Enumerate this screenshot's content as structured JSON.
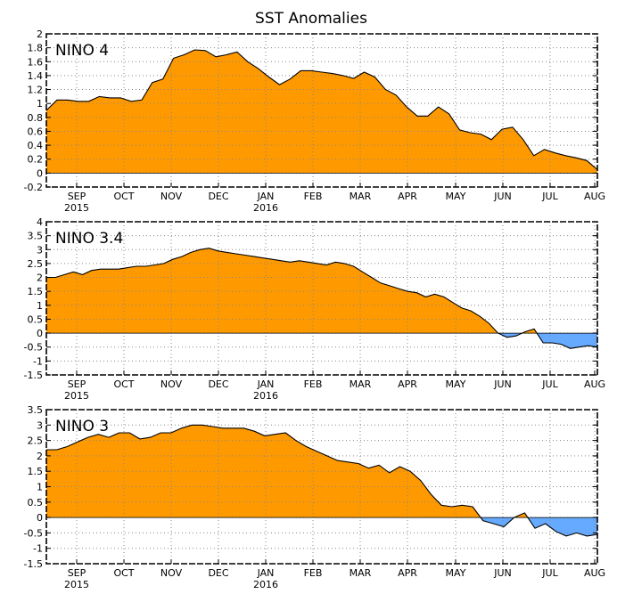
{
  "title": "SST Anomalies",
  "chart_data": [
    {
      "type": "area",
      "name": "NINO 4",
      "x_labels": [
        "SEP",
        "OCT",
        "NOV",
        "DEC",
        "JAN",
        "FEB",
        "MAR",
        "APR",
        "MAY",
        "JUN",
        "JUL",
        "AUG"
      ],
      "year_labels": [
        "2015",
        "2016"
      ],
      "ylim": [
        -0.2,
        2
      ],
      "yticks": [
        -0.2,
        0,
        0.2,
        0.4,
        0.6,
        0.8,
        1,
        1.2,
        1.4,
        1.6,
        1.8,
        2
      ],
      "ytick_labels": [
        "-0.2",
        "0",
        "0.2",
        "0.4",
        "0.6",
        "0.8",
        "1",
        "1.2",
        "1.4",
        "1.6",
        "1.8",
        "2"
      ],
      "values": [
        0.9,
        1.05,
        1.05,
        1.03,
        1.03,
        1.1,
        1.08,
        1.08,
        1.03,
        1.05,
        1.3,
        1.35,
        1.65,
        1.7,
        1.77,
        1.76,
        1.67,
        1.7,
        1.74,
        1.6,
        1.5,
        1.38,
        1.27,
        1.35,
        1.47,
        1.47,
        1.45,
        1.43,
        1.4,
        1.36,
        1.45,
        1.38,
        1.2,
        1.12,
        0.95,
        0.82,
        0.82,
        0.95,
        0.85,
        0.62,
        0.58,
        0.56,
        0.48,
        0.63,
        0.66,
        0.48,
        0.25,
        0.34,
        0.29,
        0.25,
        0.22,
        0.18,
        0.05
      ],
      "colors": {
        "positive": "#ff9900",
        "negative": "#66aaff"
      }
    },
    {
      "type": "area",
      "name": "NINO 3.4",
      "x_labels": [
        "SEP",
        "OCT",
        "NOV",
        "DEC",
        "JAN",
        "FEB",
        "MAR",
        "APR",
        "MAY",
        "JUN",
        "JUL",
        "AUG"
      ],
      "year_labels": [
        "2015",
        "2016"
      ],
      "ylim": [
        -1.5,
        4
      ],
      "yticks": [
        -1.5,
        -1,
        -0.5,
        0,
        0.5,
        1,
        1.5,
        2,
        2.5,
        3,
        3.5,
        4
      ],
      "ytick_labels": [
        "-1.5",
        "-1",
        "-0.5",
        "0",
        "0.5",
        "1",
        "1.5",
        "2",
        "2.5",
        "3",
        "3.5",
        "4"
      ],
      "values": [
        2.0,
        2.0,
        2.1,
        2.2,
        2.1,
        2.25,
        2.3,
        2.3,
        2.3,
        2.35,
        2.4,
        2.4,
        2.45,
        2.5,
        2.65,
        2.75,
        2.9,
        3.0,
        3.05,
        2.95,
        2.9,
        2.85,
        2.8,
        2.75,
        2.7,
        2.65,
        2.6,
        2.55,
        2.6,
        2.55,
        2.5,
        2.45,
        2.55,
        2.5,
        2.4,
        2.2,
        2.0,
        1.8,
        1.7,
        1.6,
        1.5,
        1.45,
        1.3,
        1.4,
        1.3,
        1.1,
        0.9,
        0.8,
        0.6,
        0.35,
        0.0,
        -0.15,
        -0.1,
        0.05,
        0.15,
        -0.35,
        -0.35,
        -0.4,
        -0.55,
        -0.5,
        -0.45,
        -0.5
      ],
      "colors": {
        "positive": "#ff9900",
        "negative": "#66aaff"
      }
    },
    {
      "type": "area",
      "name": "NINO 3",
      "x_labels": [
        "SEP",
        "OCT",
        "NOV",
        "DEC",
        "JAN",
        "FEB",
        "MAR",
        "APR",
        "MAY",
        "JUN",
        "JUL",
        "AUG"
      ],
      "year_labels": [
        "2015",
        "2016"
      ],
      "ylim": [
        -1.5,
        3.5
      ],
      "yticks": [
        -1.5,
        -1,
        -0.5,
        0,
        0.5,
        1,
        1.5,
        2,
        2.5,
        3,
        3.5
      ],
      "ytick_labels": [
        "-1.5",
        "-1",
        "-0.5",
        "0",
        "0.5",
        "1",
        "1.5",
        "2",
        "2.5",
        "3",
        "3.5"
      ],
      "values": [
        2.2,
        2.2,
        2.3,
        2.45,
        2.6,
        2.7,
        2.6,
        2.75,
        2.75,
        2.55,
        2.6,
        2.75,
        2.75,
        2.9,
        3.0,
        3.0,
        2.95,
        2.9,
        2.9,
        2.9,
        2.8,
        2.65,
        2.7,
        2.75,
        2.5,
        2.3,
        2.15,
        2.0,
        1.85,
        1.8,
        1.75,
        1.6,
        1.7,
        1.45,
        1.65,
        1.5,
        1.2,
        0.75,
        0.4,
        0.35,
        0.4,
        0.35,
        -0.1,
        -0.2,
        -0.3,
        0.0,
        0.15,
        -0.35,
        -0.2,
        -0.45,
        -0.6,
        -0.5,
        -0.6,
        -0.55
      ],
      "colors": {
        "positive": "#ff9900",
        "negative": "#66aaff"
      }
    }
  ]
}
